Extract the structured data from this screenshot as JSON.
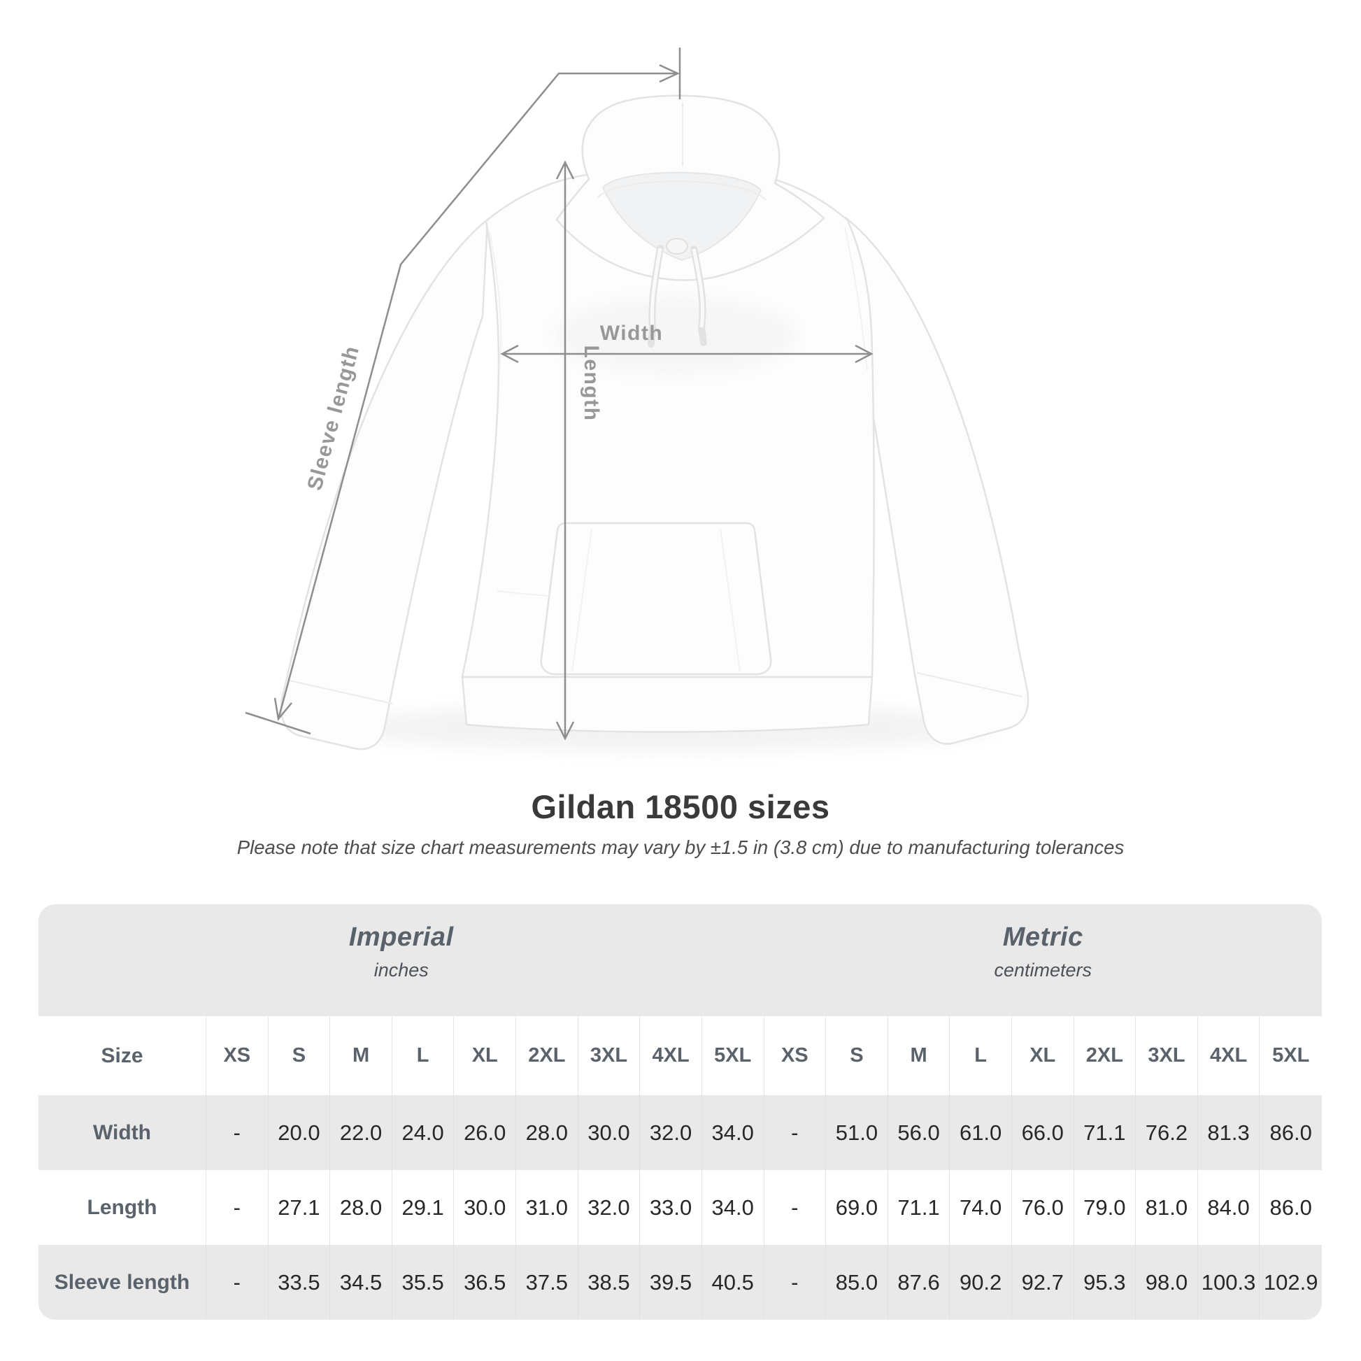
{
  "figure": {
    "sleeve_length_label": "Sleeve length",
    "length_label": "Length",
    "width_label": "Width",
    "annotation_color": "#8d8e90",
    "label_color": "#96989a"
  },
  "title": "Gildan 18500 sizes",
  "subtitle": "Please note that size chart measurements may vary by ±1.5 in (3.8 cm) due to manufacturing tolerances",
  "table": {
    "background_color": "#e9e9e9",
    "size_header": "Size",
    "groups": [
      {
        "name": "Imperial",
        "unit": "inches"
      },
      {
        "name": "Metric",
        "unit": "centimeters"
      }
    ],
    "sizes": [
      "XS",
      "S",
      "M",
      "L",
      "XL",
      "2XL",
      "3XL",
      "4XL",
      "5XL"
    ],
    "rows": [
      {
        "label": "Width",
        "imperial": [
          "-",
          "20.0",
          "22.0",
          "24.0",
          "26.0",
          "28.0",
          "30.0",
          "32.0",
          "34.0"
        ],
        "metric": [
          "-",
          "51.0",
          "56.0",
          "61.0",
          "66.0",
          "71.1",
          "76.2",
          "81.3",
          "86.0"
        ]
      },
      {
        "label": "Length",
        "imperial": [
          "-",
          "27.1",
          "28.0",
          "29.1",
          "30.0",
          "31.0",
          "32.0",
          "33.0",
          "34.0"
        ],
        "metric": [
          "-",
          "69.0",
          "71.1",
          "74.0",
          "76.0",
          "79.0",
          "81.0",
          "84.0",
          "86.0"
        ]
      },
      {
        "label": "Sleeve length",
        "imperial": [
          "-",
          "33.5",
          "34.5",
          "35.5",
          "36.5",
          "37.5",
          "38.5",
          "39.5",
          "40.5"
        ],
        "metric": [
          "-",
          "85.0",
          "87.6",
          "90.2",
          "92.7",
          "95.3",
          "98.0",
          "100.3",
          "102.9"
        ]
      }
    ]
  }
}
